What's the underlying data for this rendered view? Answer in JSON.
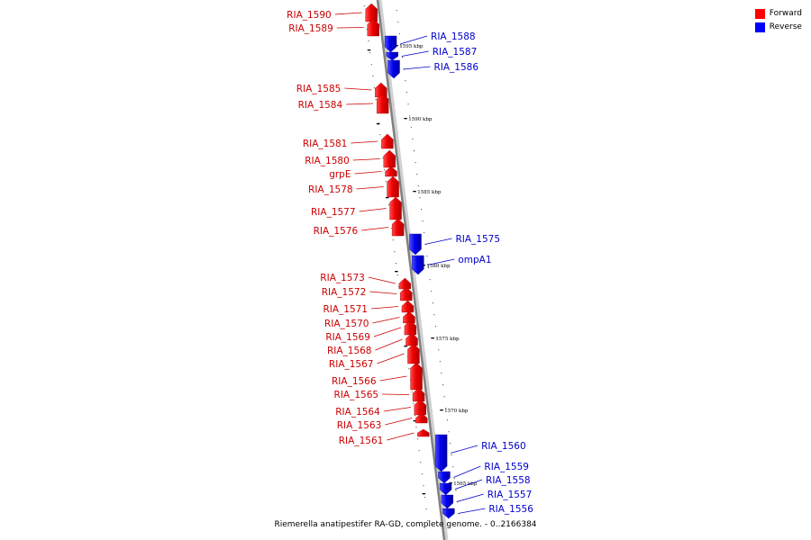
{
  "legend": {
    "forward_label": "Forward",
    "reverse_label": "Reverse",
    "forward_color": "#ff0000",
    "reverse_color": "#0000ff"
  },
  "caption": "Riemerella anatipestifer RA-GD, complete genome. - 0..2166384",
  "ticks": [
    "1595 kbp",
    "1590 kbp",
    "1585 kbp",
    "1580 kbp",
    "1575 kbp",
    "1570 kbp",
    "1565 kbp"
  ],
  "genes_forward": [
    "RIA_1590",
    "RIA_1589",
    "RIA_1585",
    "RIA_1584",
    "RIA_1581",
    "RIA_1580",
    "grpE",
    "RIA_1578",
    "RIA_1577",
    "RIA_1576",
    "RIA_1573",
    "RIA_1572",
    "RIA_1571",
    "RIA_1570",
    "RIA_1569",
    "RIA_1568",
    "RIA_1567",
    "RIA_1566",
    "RIA_1565",
    "RIA_1564",
    "RIA_1563",
    "RIA_1561"
  ],
  "genes_reverse": [
    "RIA_1588",
    "RIA_1587",
    "RIA_1586",
    "RIA_1575",
    "ompA1",
    "RIA_1560",
    "RIA_1559",
    "RIA_1558",
    "RIA_1557",
    "RIA_1556"
  ]
}
